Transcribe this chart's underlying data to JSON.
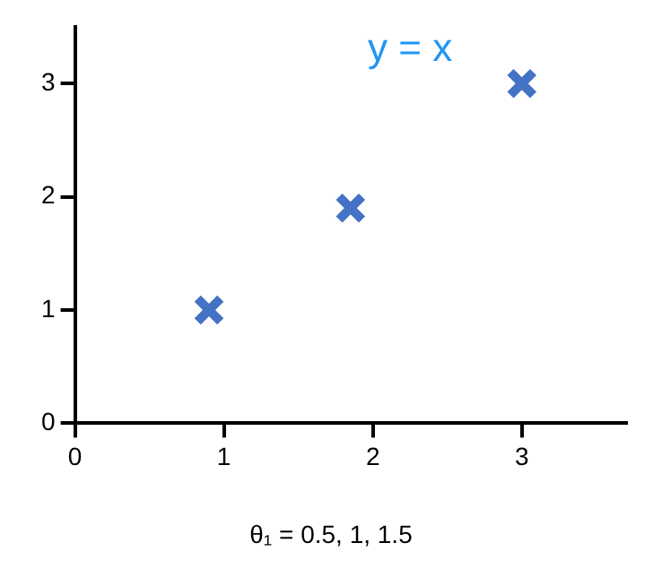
{
  "chart_data": {
    "type": "scatter",
    "x": [
      0.9,
      1.85,
      3
    ],
    "series": [
      {
        "color": "#4472c4",
        "values": [
          1,
          1.9,
          3
        ]
      }
    ],
    "xlim": [
      0,
      3.7
    ],
    "ylim": [
      0,
      3.5
    ],
    "xticks": [
      0,
      1,
      2,
      3
    ],
    "yticks": [
      0,
      1,
      2,
      3
    ],
    "grid": false,
    "legend": false,
    "marker": "cross",
    "annotations": [
      "y = x",
      "θ₁ = 0.5, 1, 1.5"
    ]
  }
}
